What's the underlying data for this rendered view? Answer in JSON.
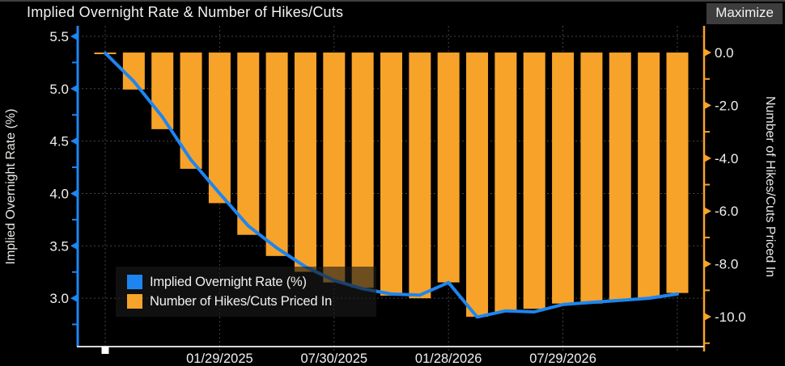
{
  "header": {
    "title": "Implied Overnight Rate & Number of Hikes/Cuts",
    "maximize_label": "Maximize"
  },
  "colors": {
    "background": "#000000",
    "line_blue": "#1e85f0",
    "bar_orange": "#f7a329",
    "grid": "#454545",
    "tick_text": "#f0f0ee",
    "axis_title_text": "#e8e8e4",
    "bottom_axis_line": "#d8d8d8",
    "handle_white": "#ffffff",
    "maximize_bg": "#3d3d3d",
    "legend_bg": "rgba(26,26,26,0.62)"
  },
  "legend": {
    "items": [
      {
        "label": "Implied Overnight Rate (%)",
        "swatch_color": "#1e85f0"
      },
      {
        "label": "Number of Hikes/Cuts Priced In",
        "swatch_color": "#f7a329"
      }
    ]
  },
  "chart_data": {
    "type": "line+bar dual-axis",
    "title": "Implied Overnight Rate & Number of Hikes/Cuts",
    "grid": "dashed both axes",
    "legend_position": "inside lower-left",
    "x": {
      "num_points": 21,
      "gridline_indices": [
        0,
        4,
        8,
        12,
        16,
        20
      ],
      "date_ticks": [
        {
          "index": 4,
          "label": "01/29/2025"
        },
        {
          "index": 8,
          "label": "07/30/2025"
        },
        {
          "index": 12,
          "label": "01/28/2026"
        },
        {
          "index": 16,
          "label": "07/29/2026"
        }
      ]
    },
    "left_axis": {
      "title": "Implied Overnight Rate (%)",
      "ticks": [
        5.5,
        5.0,
        4.5,
        4.0,
        3.5,
        3.0
      ],
      "tick_labels": [
        "5.5",
        "5.0",
        "4.5",
        "4.0",
        "3.5",
        "3.0"
      ],
      "minor_ticks": [
        5.25,
        4.75,
        4.25,
        3.75,
        3.25,
        2.75
      ],
      "ylim": [
        2.538,
        5.6
      ]
    },
    "right_axis": {
      "title": "Number of Hikes/Cuts Priced In",
      "ticks": [
        0.0,
        -2.0,
        -4.0,
        -6.0,
        -8.0,
        -10.0
      ],
      "tick_labels": [
        "0.0",
        "-2.0",
        "-4.0",
        "-6.0",
        "-8.0",
        "-10.0"
      ],
      "minor_ticks": [
        -1,
        -3,
        -5,
        -7,
        -9,
        -11
      ],
      "ylim": [
        -11.13,
        1.01
      ]
    },
    "series": [
      {
        "name": "Implied Overnight Rate (%)",
        "type": "line",
        "axis": "left",
        "color": "#1e85f0",
        "values": [
          5.34,
          5.07,
          4.73,
          4.32,
          4.0,
          3.69,
          3.48,
          3.3,
          3.17,
          3.09,
          3.04,
          3.03,
          3.15,
          2.82,
          2.88,
          2.87,
          2.94,
          2.96,
          2.98,
          3.0,
          3.04
        ]
      },
      {
        "name": "Number of Hikes/Cuts Priced In",
        "type": "bar",
        "axis": "right",
        "color": "#f7a329",
        "values": [
          0.0,
          -1.4,
          -2.9,
          -4.4,
          -5.7,
          -6.9,
          -7.7,
          -8.3,
          -8.7,
          -8.9,
          -9.2,
          -9.3,
          -8.7,
          -10.0,
          -9.8,
          -9.7,
          -9.5,
          -9.5,
          -9.4,
          -9.3,
          -9.1
        ]
      }
    ]
  }
}
